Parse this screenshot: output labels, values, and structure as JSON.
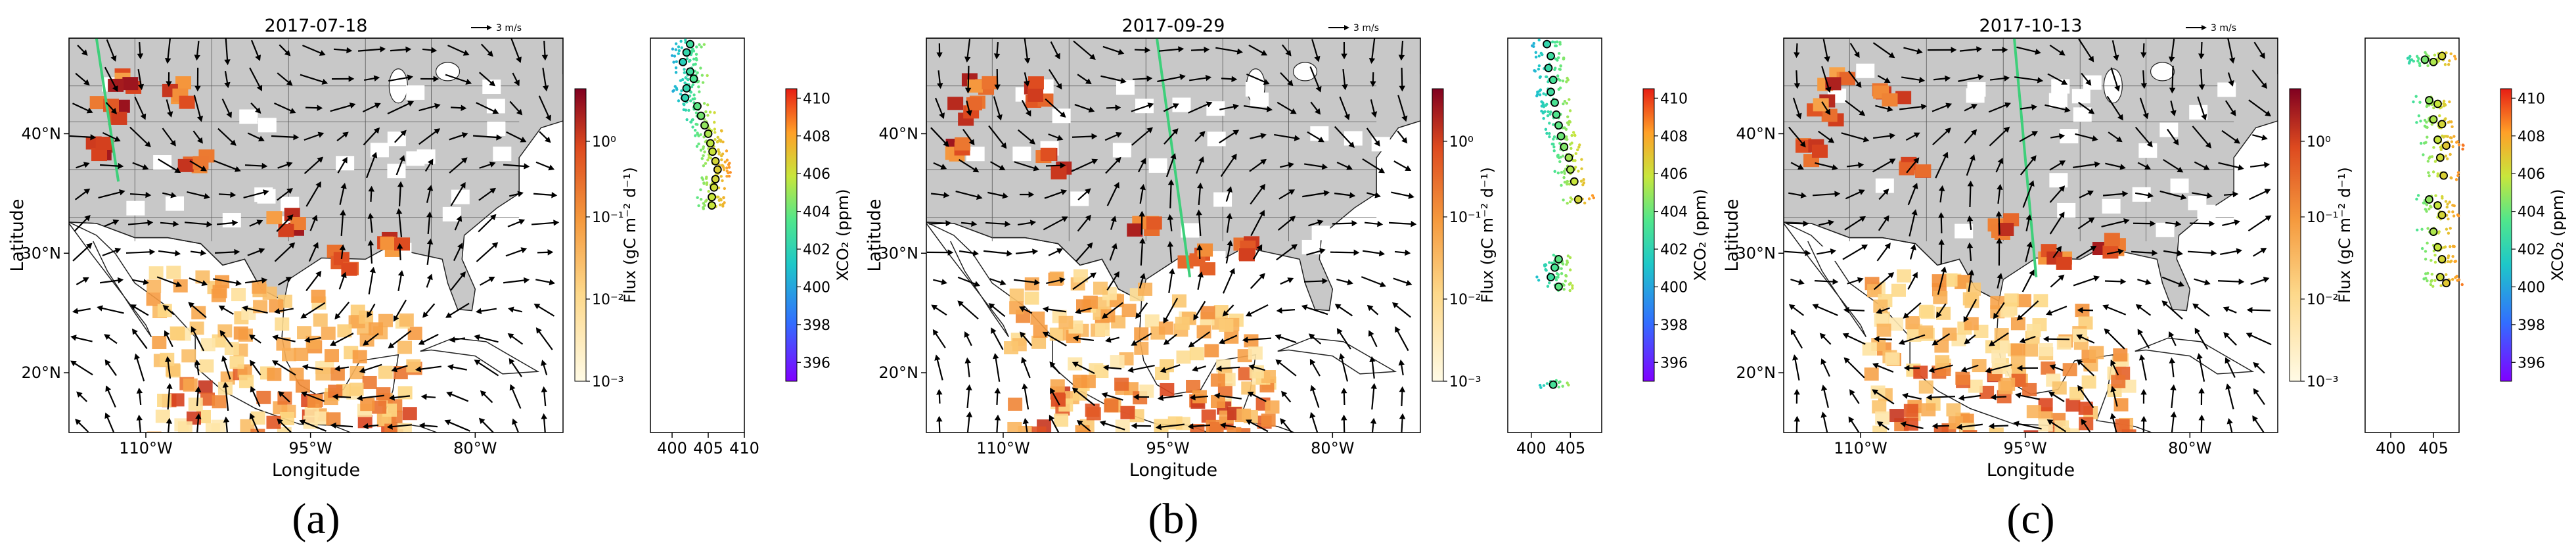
{
  "chart_data": [
    {
      "type": "map-scatter",
      "title": "2017-07-18",
      "caption": "(a)",
      "map": {
        "xlabel": "Longitude",
        "ylabel": "Latitude",
        "xticks": [
          "110°W",
          "95°W",
          "80°W"
        ],
        "yticks": [
          "20°N",
          "30°N",
          "40°N"
        ],
        "wind_reference": "3 m/s",
        "colorbar_label": "Flux (gC m⁻² d⁻¹)",
        "colorbar_ticks": [
          "10⁰",
          "10⁻¹",
          "10⁻²",
          "10⁻³"
        ]
      },
      "xco2": {
        "colorbar_label": "XCO₂ (ppm)",
        "colorbar_ticks": [
          "410",
          "408",
          "406",
          "404",
          "402",
          "400",
          "398",
          "396"
        ],
        "xticks": [
          "400",
          "405",
          "410"
        ],
        "xlim": [
          397,
          410
        ],
        "points": [
          [
            402.5,
            47.5
          ],
          [
            402.0,
            46.8
          ],
          [
            401.5,
            46.0
          ],
          [
            402.5,
            45.2
          ],
          [
            403.0,
            44.6
          ],
          [
            402.0,
            43.8
          ],
          [
            401.8,
            43.0
          ],
          [
            403.5,
            42.3
          ],
          [
            404.0,
            41.5
          ],
          [
            404.5,
            40.7
          ],
          [
            405.0,
            40.0
          ],
          [
            405.3,
            39.2
          ],
          [
            405.6,
            38.5
          ],
          [
            406.0,
            37.7
          ],
          [
            406.3,
            37.0
          ],
          [
            406.0,
            36.2
          ],
          [
            405.8,
            35.5
          ],
          [
            405.5,
            34.7
          ],
          [
            405.5,
            34.0
          ]
        ]
      }
    },
    {
      "type": "map-scatter",
      "title": "2017-09-29",
      "caption": "(b)",
      "map": {
        "xlabel": "Longitude",
        "ylabel": "Latitude",
        "xticks": [
          "110°W",
          "95°W",
          "80°W"
        ],
        "yticks": [
          "20°N",
          "30°N",
          "40°N"
        ],
        "wind_reference": "3 m/s",
        "colorbar_label": "Flux (gC m⁻² d⁻¹)",
        "colorbar_ticks": [
          "10⁰",
          "10⁻¹",
          "10⁻²",
          "10⁻³"
        ]
      },
      "xco2": {
        "colorbar_label": "XCO₂ (ppm)",
        "colorbar_ticks": [
          "410",
          "408",
          "406",
          "404",
          "402",
          "400",
          "398",
          "396"
        ],
        "xticks": [
          "400",
          "405"
        ],
        "xlim": [
          397,
          409
        ],
        "points": [
          [
            402.0,
            47.5
          ],
          [
            402.5,
            46.5
          ],
          [
            402.2,
            45.5
          ],
          [
            402.8,
            44.5
          ],
          [
            402.5,
            43.5
          ],
          [
            403.0,
            42.6
          ],
          [
            403.2,
            41.6
          ],
          [
            403.5,
            40.7
          ],
          [
            403.8,
            39.8
          ],
          [
            404.2,
            38.9
          ],
          [
            404.8,
            38.0
          ],
          [
            405.0,
            37.0
          ],
          [
            405.5,
            36.0
          ],
          [
            406.0,
            34.5
          ],
          [
            403.5,
            29.5
          ],
          [
            403.0,
            28.8
          ],
          [
            402.5,
            28.0
          ],
          [
            403.5,
            27.2
          ],
          [
            402.8,
            19.0
          ]
        ]
      }
    },
    {
      "type": "map-scatter",
      "title": "2017-10-13",
      "caption": "(c)",
      "map": {
        "xlabel": "Longitude",
        "ylabel": "Latitude",
        "xticks": [
          "110°W",
          "95°W",
          "80°W"
        ],
        "yticks": [
          "20°N",
          "30°N",
          "40°N"
        ],
        "wind_reference": "3 m/s",
        "colorbar_label": "Flux (gC m⁻² d⁻¹)",
        "colorbar_ticks": [
          "10⁰",
          "10⁻¹",
          "10⁻²",
          "10⁻³"
        ]
      },
      "xco2": {
        "colorbar_label": "XCO₂ (ppm)",
        "colorbar_ticks": [
          "410",
          "408",
          "406",
          "404",
          "402",
          "400",
          "398",
          "396"
        ],
        "xticks": [
          "400",
          "405"
        ],
        "xlim": [
          397,
          408
        ],
        "points": [
          [
            404.0,
            46.2
          ],
          [
            405.0,
            46.0
          ],
          [
            406.0,
            46.5
          ],
          [
            404.5,
            42.8
          ],
          [
            405.5,
            42.5
          ],
          [
            405.0,
            41.2
          ],
          [
            406.0,
            40.8
          ],
          [
            405.5,
            39.5
          ],
          [
            406.5,
            39.0
          ],
          [
            405.8,
            38.0
          ],
          [
            406.2,
            36.5
          ],
          [
            404.5,
            34.5
          ],
          [
            405.5,
            34.0
          ],
          [
            406.0,
            33.2
          ],
          [
            405.0,
            31.8
          ],
          [
            405.5,
            30.5
          ],
          [
            406.0,
            29.5
          ],
          [
            405.8,
            28.0
          ],
          [
            406.5,
            27.5
          ]
        ]
      }
    }
  ]
}
